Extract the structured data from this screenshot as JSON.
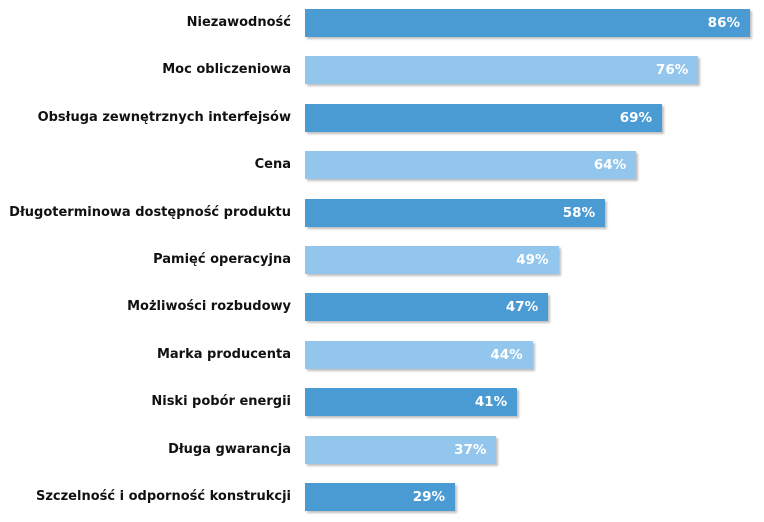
{
  "chart_data": {
    "type": "bar",
    "orientation": "horizontal",
    "categories": [
      "Niezawodność",
      "Moc obliczeniowa",
      "Obsługa zewnętrznych interfejsów",
      "Cena",
      "Długoterminowa dostępność produktu",
      "Pamięć operacyjna",
      "Możliwości rozbudowy",
      "Marka producenta",
      "Niski pobór energii",
      "Długa gwarancja",
      "Szczelność i odporność konstrukcji"
    ],
    "values": [
      86,
      76,
      69,
      64,
      58,
      49,
      47,
      44,
      41,
      37,
      29
    ],
    "value_labels": [
      "86%",
      "76%",
      "69%",
      "64%",
      "58%",
      "49%",
      "47%",
      "44%",
      "41%",
      "37%",
      "29%"
    ],
    "unit": "%",
    "xlim": [
      0,
      86
    ],
    "grid": false,
    "colors": [
      "#4a9ad4",
      "#92c6ec"
    ]
  }
}
